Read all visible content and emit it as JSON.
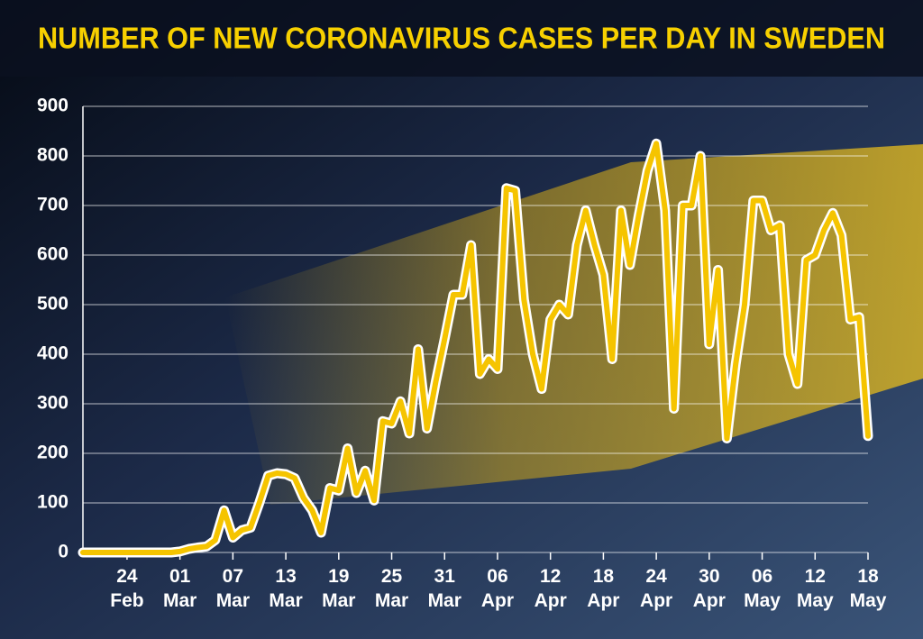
{
  "chart_data": {
    "type": "line",
    "title": "NUMBER OF NEW CORONAVIRUS CASES PER DAY IN SWEDEN",
    "categories": [
      null,
      null,
      null,
      null,
      null,
      "24 Feb",
      null,
      null,
      null,
      null,
      null,
      "01 Mar",
      null,
      null,
      null,
      null,
      null,
      "07 Mar",
      null,
      null,
      null,
      null,
      null,
      "13 Mar",
      null,
      null,
      null,
      null,
      null,
      "19 Mar",
      null,
      null,
      null,
      null,
      null,
      "25 Mar",
      null,
      null,
      null,
      null,
      null,
      "31 Mar",
      null,
      null,
      null,
      null,
      null,
      "06 Apr",
      null,
      null,
      null,
      null,
      null,
      "12 Apr",
      null,
      null,
      null,
      null,
      null,
      "18 Apr",
      null,
      null,
      null,
      null,
      null,
      "24 Apr",
      null,
      null,
      null,
      null,
      null,
      "30 Apr",
      null,
      null,
      null,
      null,
      null,
      "06 May",
      null,
      null,
      null,
      null,
      null,
      "12 May",
      null,
      null,
      null,
      null,
      null,
      "18 May"
    ],
    "values": [
      0,
      0,
      0,
      0,
      0,
      0,
      0,
      0,
      0,
      0,
      0,
      2,
      7,
      10,
      12,
      25,
      85,
      30,
      45,
      50,
      100,
      155,
      160,
      158,
      150,
      110,
      85,
      40,
      130,
      125,
      210,
      120,
      165,
      105,
      265,
      260,
      305,
      240,
      410,
      250,
      345,
      430,
      520,
      520,
      620,
      360,
      390,
      370,
      735,
      730,
      510,
      400,
      330,
      470,
      500,
      480,
      620,
      690,
      620,
      560,
      390,
      690,
      580,
      680,
      770,
      825,
      690,
      290,
      700,
      700,
      800,
      420,
      570,
      230,
      380,
      500,
      710,
      710,
      650,
      660,
      400,
      340,
      590,
      600,
      650,
      685,
      640,
      470,
      475,
      235
    ],
    "color": "#f5c400",
    "ylim": [
      0,
      900
    ],
    "yticks": [
      0,
      100,
      200,
      300,
      400,
      500,
      600,
      700,
      800,
      900
    ],
    "grid": true
  }
}
